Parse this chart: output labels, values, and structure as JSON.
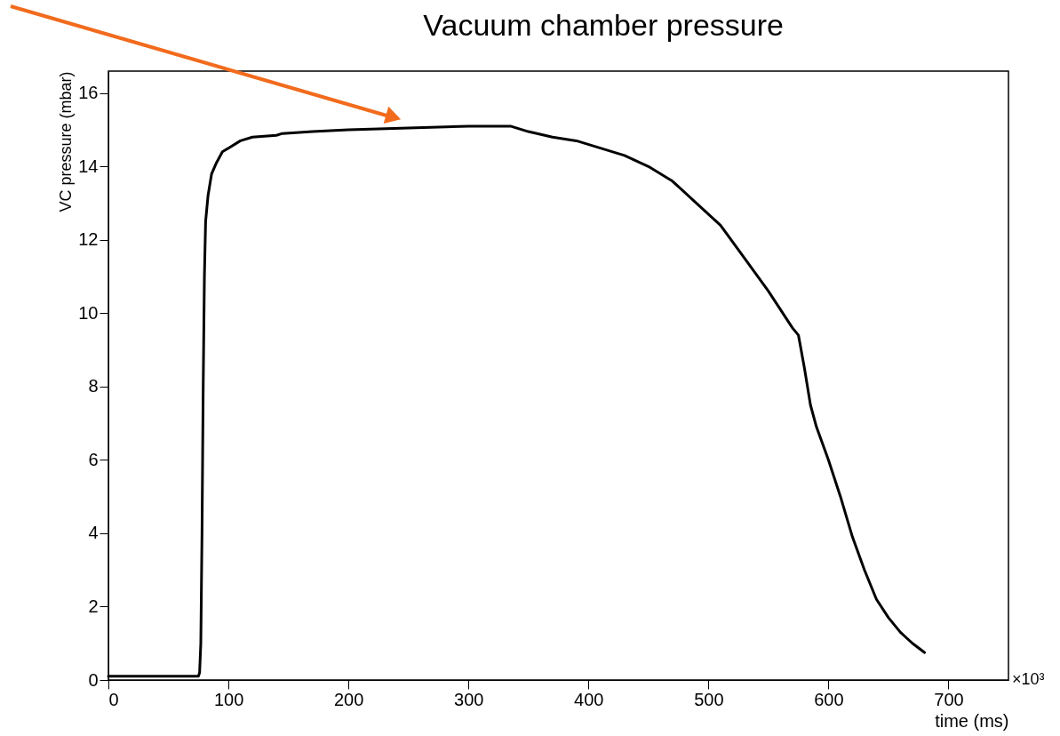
{
  "chart_data": {
    "type": "line",
    "title": "Vacuum chamber pressure",
    "xlabel": "time (ms)",
    "ylabel": "VC pressure (mbar)",
    "x": [
      0,
      75,
      76,
      77,
      78,
      79,
      80,
      81,
      83,
      86,
      90,
      95,
      100,
      110,
      120,
      140,
      145,
      170,
      200,
      250,
      300,
      335,
      350,
      370,
      390,
      410,
      430,
      450,
      470,
      490,
      510,
      530,
      550,
      570,
      575,
      580,
      585,
      590,
      600,
      610,
      620,
      630,
      640,
      650,
      660,
      670,
      680
    ],
    "series": [
      {
        "color": "#000000",
        "values": [
          0.1,
          0.1,
          0.2,
          1,
          4,
          8,
          11,
          12.5,
          13.2,
          13.8,
          14.1,
          14.4,
          14.5,
          14.7,
          14.8,
          14.85,
          14.9,
          14.95,
          15.0,
          15.05,
          15.1,
          15.1,
          14.95,
          14.8,
          14.7,
          14.5,
          14.3,
          14.0,
          13.6,
          13.0,
          12.4,
          11.5,
          10.6,
          9.6,
          9.4,
          8.5,
          7.5,
          6.9,
          6.0,
          5.0,
          3.9,
          3.0,
          2.2,
          1.7,
          1.3,
          1.0,
          0.75
        ]
      }
    ],
    "xlim": [
      0,
      750
    ],
    "xticks": [
      0,
      100,
      200,
      300,
      400,
      500,
      600,
      700
    ],
    "ylim": [
      0,
      16.6
    ],
    "yticks": [
      0,
      2,
      4,
      6,
      8,
      10,
      12,
      14,
      16
    ],
    "annotations": [
      "×10³"
    ],
    "grid": false,
    "marker": "none",
    "line_style": "solid"
  }
}
